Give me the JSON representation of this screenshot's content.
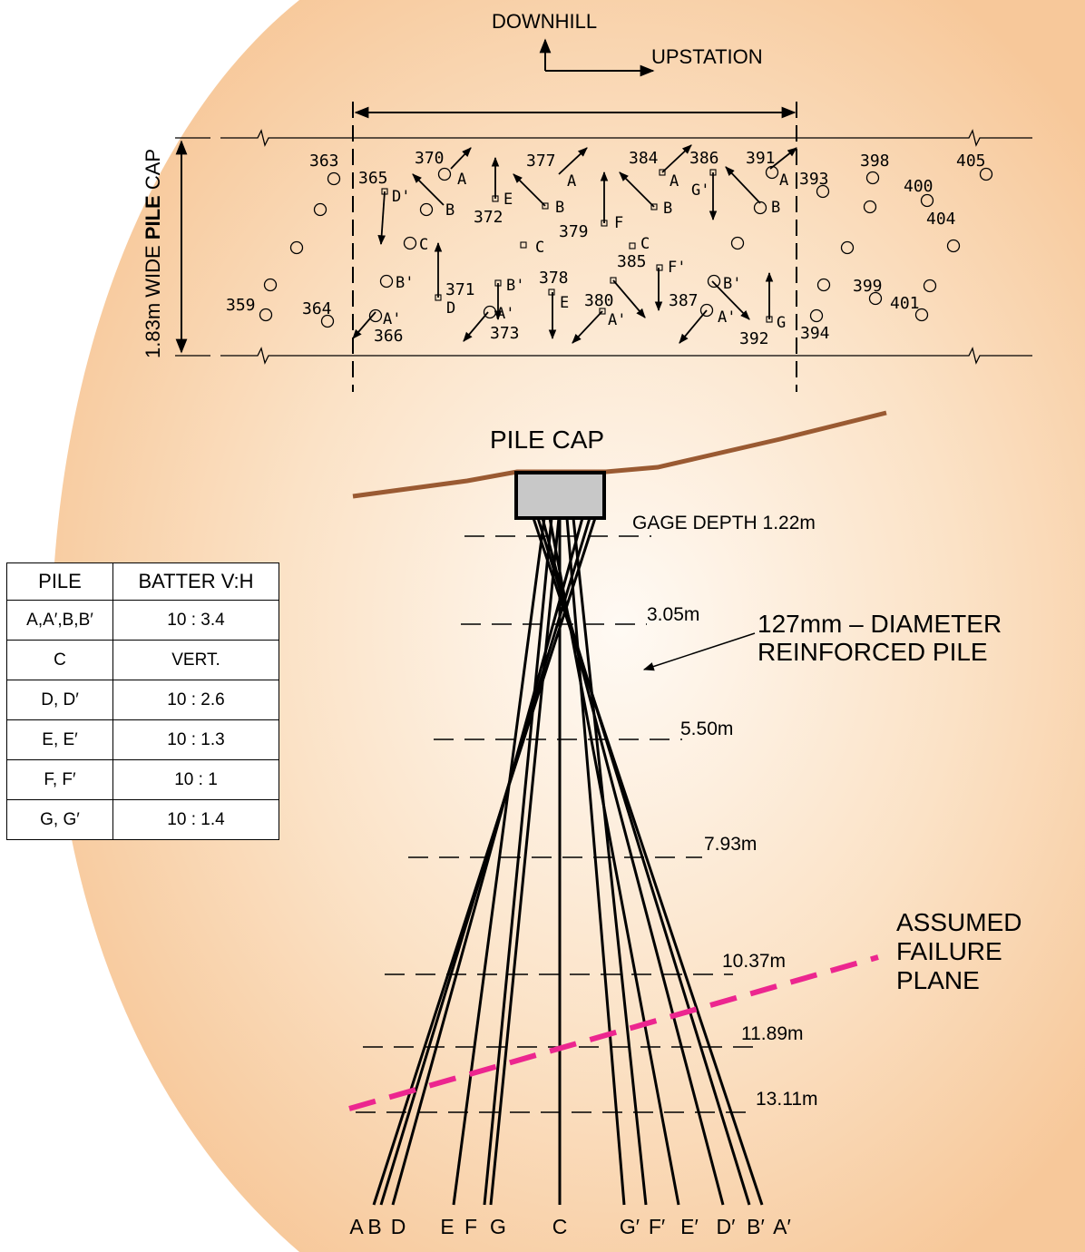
{
  "orientation": {
    "downhill": "DOWNHILL",
    "upstation": "UPSTATION"
  },
  "pile_cap_width_label": {
    "pre": "1.83m WIDE ",
    "bold": "PILE",
    "post": " CAP"
  },
  "pile_cap_label": "PILE CAP",
  "pile_description": "127mm – DIAMETER\nREINFORCED PILE",
  "failure_plane_label": "ASSUMED\nFAILURE\nPLANE",
  "colors": {
    "background_glow": "#f7c89a",
    "failure_plane": "#ec268f",
    "ground": "#9a5a32",
    "pile_cap": "#c8c8c8"
  },
  "gage_depths": [
    "GAGE DEPTH 1.22m",
    "3.05m",
    "5.50m",
    "7.93m",
    "10.37m",
    "11.89m",
    "13.11m"
  ],
  "pile_bottom_labels": [
    "A",
    "B",
    "D",
    "E",
    "F",
    "G",
    "C",
    "G′",
    "F′",
    "E′",
    "D′",
    "B′",
    "A′"
  ],
  "table": {
    "headers": [
      "PILE",
      "BATTER V:H"
    ],
    "rows": [
      [
        "A,A′,B,B′",
        "10 : 3.4"
      ],
      [
        "C",
        "VERT."
      ],
      [
        "D, D′",
        "10 : 2.6"
      ],
      [
        "E, E′",
        "10 : 1.3"
      ],
      [
        "F, F′",
        "10 : 1"
      ],
      [
        "G, G′",
        "10 : 1.4"
      ]
    ]
  },
  "plan_numbers": [
    "359",
    "363",
    "364",
    "365",
    "366",
    "370",
    "371",
    "372",
    "373",
    "377",
    "378",
    "379",
    "380",
    "384",
    "385",
    "386",
    "387",
    "391",
    "392",
    "393",
    "394",
    "398",
    "399",
    "400",
    "401",
    "404",
    "405"
  ],
  "plan_letters": {
    "left_group": [
      "D'",
      "B",
      "C",
      "B'",
      "A'",
      "A",
      "D"
    ],
    "middle_group": [
      "A",
      "E",
      "B",
      "F",
      "C",
      "E",
      "B'",
      "A'",
      "A'"
    ],
    "right_group": [
      "A",
      "B",
      "G'",
      "C",
      "F'",
      "B'",
      "A'",
      "A",
      "B",
      "G"
    ]
  }
}
